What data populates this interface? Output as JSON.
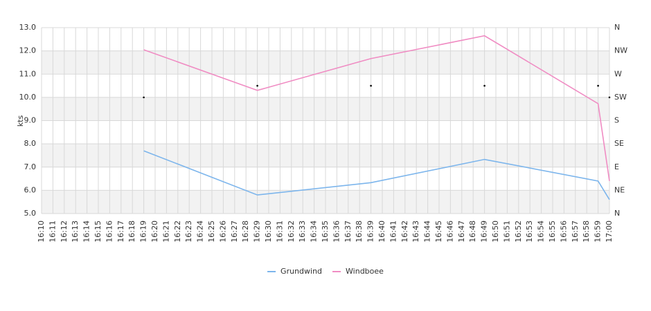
{
  "chart_data": {
    "type": "line",
    "y_label": "kts",
    "categories": [
      "16:10",
      "16:11",
      "16:12",
      "16:13",
      "16:14",
      "16:15",
      "16:16",
      "16:17",
      "16:18",
      "16:19",
      "16:20",
      "16:21",
      "16:22",
      "16:23",
      "16:24",
      "16:25",
      "16:26",
      "16:27",
      "16:28",
      "16:29",
      "16:30",
      "16:31",
      "16:32",
      "16:33",
      "16:34",
      "16:35",
      "16:36",
      "16:37",
      "16:38",
      "16:39",
      "16:40",
      "16:41",
      "16:42",
      "16:43",
      "16:44",
      "16:45",
      "16:46",
      "16:47",
      "16:48",
      "16:49",
      "16:50",
      "16:51",
      "16:52",
      "16:53",
      "16:54",
      "16:55",
      "16:56",
      "16:57",
      "16:58",
      "16:59",
      "17:00"
    ],
    "series": [
      {
        "name": "Grundwind",
        "color": "#7cb5ec",
        "values": [
          null,
          null,
          null,
          null,
          null,
          null,
          null,
          null,
          null,
          7.7,
          null,
          null,
          null,
          null,
          null,
          null,
          null,
          null,
          null,
          5.8,
          null,
          null,
          null,
          null,
          null,
          null,
          null,
          null,
          null,
          6.33,
          null,
          null,
          null,
          null,
          null,
          null,
          null,
          null,
          null,
          7.33,
          null,
          null,
          null,
          null,
          null,
          null,
          null,
          null,
          null,
          6.4,
          5.6
        ]
      },
      {
        "name": "Windboee",
        "color": "#f08cc3",
        "values": [
          null,
          null,
          null,
          null,
          null,
          null,
          null,
          null,
          null,
          12.05,
          null,
          null,
          null,
          null,
          null,
          null,
          null,
          null,
          null,
          10.3,
          null,
          null,
          null,
          null,
          null,
          null,
          null,
          null,
          null,
          11.67,
          null,
          null,
          null,
          null,
          null,
          null,
          null,
          null,
          null,
          12.65,
          null,
          null,
          null,
          null,
          null,
          null,
          null,
          null,
          null,
          9.73,
          6.4
        ]
      },
      {
        "axis": "y2",
        "color": "#000000",
        "marker": "dot",
        "values": [
          null,
          null,
          null,
          null,
          null,
          null,
          null,
          null,
          null,
          225,
          null,
          null,
          null,
          null,
          null,
          null,
          null,
          null,
          null,
          247.5,
          null,
          null,
          null,
          null,
          null,
          null,
          null,
          null,
          null,
          247.5,
          null,
          null,
          null,
          null,
          null,
          null,
          null,
          null,
          null,
          247.5,
          null,
          null,
          null,
          null,
          null,
          null,
          null,
          null,
          null,
          247.5,
          225
        ]
      }
    ],
    "connect_gaps": true,
    "ylim": [
      5,
      13
    ],
    "yticks": [
      {
        "value": 5,
        "label": "5.0"
      },
      {
        "value": 6,
        "label": "6.0"
      },
      {
        "value": 7,
        "label": "7.0"
      },
      {
        "value": 8,
        "label": "8.0"
      },
      {
        "value": 9,
        "label": "9.0"
      },
      {
        "value": 10,
        "label": "10.0"
      },
      {
        "value": 11,
        "label": "11.0"
      },
      {
        "value": 12,
        "label": "12.0"
      },
      {
        "value": 13,
        "label": "13.0"
      }
    ],
    "y2lim": [
      0,
      360
    ],
    "y2ticks": [
      {
        "value": 0,
        "label": "N"
      },
      {
        "value": 45,
        "label": "NE"
      },
      {
        "value": 90,
        "label": "E"
      },
      {
        "value": 135,
        "label": "SE"
      },
      {
        "value": 180,
        "label": "S"
      },
      {
        "value": 225,
        "label": "SW"
      },
      {
        "value": 270,
        "label": "W"
      },
      {
        "value": 315,
        "label": "NW"
      },
      {
        "value": 360,
        "label": "N"
      }
    ],
    "bands": true,
    "grid": true,
    "legend": "bottom"
  }
}
